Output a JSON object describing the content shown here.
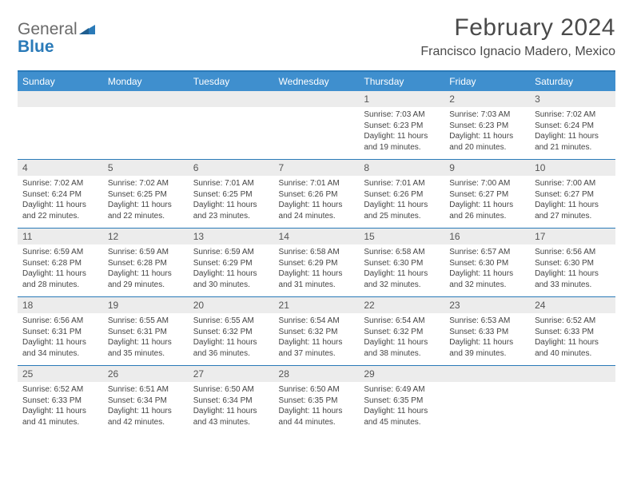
{
  "brand": {
    "word1": "General",
    "word2": "Blue",
    "logo_color": "#2a7ab8",
    "word1_color": "#6a6a6a"
  },
  "title": "February 2024",
  "location": "Francisco Ignacio Madero, Mexico",
  "colors": {
    "header_bg": "#3f8fce",
    "header_text": "#ffffff",
    "rule": "#2a7ab8",
    "daynum_bg": "#ececec",
    "text": "#444444"
  },
  "day_names": [
    "Sunday",
    "Monday",
    "Tuesday",
    "Wednesday",
    "Thursday",
    "Friday",
    "Saturday"
  ],
  "weeks": [
    [
      null,
      null,
      null,
      null,
      {
        "n": "1",
        "sr": "7:03 AM",
        "ss": "6:23 PM",
        "dl": "11 hours and 19 minutes."
      },
      {
        "n": "2",
        "sr": "7:03 AM",
        "ss": "6:23 PM",
        "dl": "11 hours and 20 minutes."
      },
      {
        "n": "3",
        "sr": "7:02 AM",
        "ss": "6:24 PM",
        "dl": "11 hours and 21 minutes."
      }
    ],
    [
      {
        "n": "4",
        "sr": "7:02 AM",
        "ss": "6:24 PM",
        "dl": "11 hours and 22 minutes."
      },
      {
        "n": "5",
        "sr": "7:02 AM",
        "ss": "6:25 PM",
        "dl": "11 hours and 22 minutes."
      },
      {
        "n": "6",
        "sr": "7:01 AM",
        "ss": "6:25 PM",
        "dl": "11 hours and 23 minutes."
      },
      {
        "n": "7",
        "sr": "7:01 AM",
        "ss": "6:26 PM",
        "dl": "11 hours and 24 minutes."
      },
      {
        "n": "8",
        "sr": "7:01 AM",
        "ss": "6:26 PM",
        "dl": "11 hours and 25 minutes."
      },
      {
        "n": "9",
        "sr": "7:00 AM",
        "ss": "6:27 PM",
        "dl": "11 hours and 26 minutes."
      },
      {
        "n": "10",
        "sr": "7:00 AM",
        "ss": "6:27 PM",
        "dl": "11 hours and 27 minutes."
      }
    ],
    [
      {
        "n": "11",
        "sr": "6:59 AM",
        "ss": "6:28 PM",
        "dl": "11 hours and 28 minutes."
      },
      {
        "n": "12",
        "sr": "6:59 AM",
        "ss": "6:28 PM",
        "dl": "11 hours and 29 minutes."
      },
      {
        "n": "13",
        "sr": "6:59 AM",
        "ss": "6:29 PM",
        "dl": "11 hours and 30 minutes."
      },
      {
        "n": "14",
        "sr": "6:58 AM",
        "ss": "6:29 PM",
        "dl": "11 hours and 31 minutes."
      },
      {
        "n": "15",
        "sr": "6:58 AM",
        "ss": "6:30 PM",
        "dl": "11 hours and 32 minutes."
      },
      {
        "n": "16",
        "sr": "6:57 AM",
        "ss": "6:30 PM",
        "dl": "11 hours and 32 minutes."
      },
      {
        "n": "17",
        "sr": "6:56 AM",
        "ss": "6:30 PM",
        "dl": "11 hours and 33 minutes."
      }
    ],
    [
      {
        "n": "18",
        "sr": "6:56 AM",
        "ss": "6:31 PM",
        "dl": "11 hours and 34 minutes."
      },
      {
        "n": "19",
        "sr": "6:55 AM",
        "ss": "6:31 PM",
        "dl": "11 hours and 35 minutes."
      },
      {
        "n": "20",
        "sr": "6:55 AM",
        "ss": "6:32 PM",
        "dl": "11 hours and 36 minutes."
      },
      {
        "n": "21",
        "sr": "6:54 AM",
        "ss": "6:32 PM",
        "dl": "11 hours and 37 minutes."
      },
      {
        "n": "22",
        "sr": "6:54 AM",
        "ss": "6:32 PM",
        "dl": "11 hours and 38 minutes."
      },
      {
        "n": "23",
        "sr": "6:53 AM",
        "ss": "6:33 PM",
        "dl": "11 hours and 39 minutes."
      },
      {
        "n": "24",
        "sr": "6:52 AM",
        "ss": "6:33 PM",
        "dl": "11 hours and 40 minutes."
      }
    ],
    [
      {
        "n": "25",
        "sr": "6:52 AM",
        "ss": "6:33 PM",
        "dl": "11 hours and 41 minutes."
      },
      {
        "n": "26",
        "sr": "6:51 AM",
        "ss": "6:34 PM",
        "dl": "11 hours and 42 minutes."
      },
      {
        "n": "27",
        "sr": "6:50 AM",
        "ss": "6:34 PM",
        "dl": "11 hours and 43 minutes."
      },
      {
        "n": "28",
        "sr": "6:50 AM",
        "ss": "6:35 PM",
        "dl": "11 hours and 44 minutes."
      },
      {
        "n": "29",
        "sr": "6:49 AM",
        "ss": "6:35 PM",
        "dl": "11 hours and 45 minutes."
      },
      null,
      null
    ]
  ],
  "labels": {
    "sunrise": "Sunrise: ",
    "sunset": "Sunset: ",
    "daylight": "Daylight: "
  }
}
